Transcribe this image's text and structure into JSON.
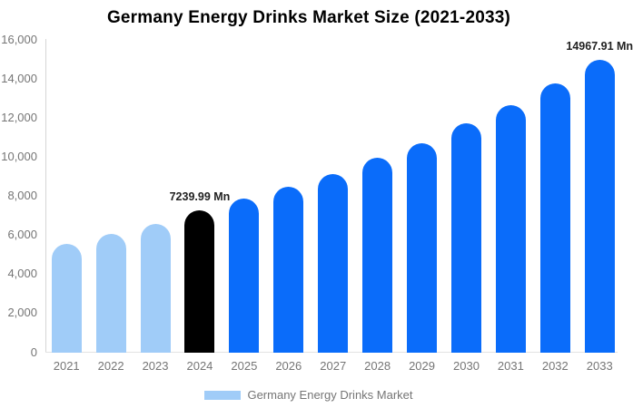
{
  "title": "Germany Energy Drinks Market Size (2021-2033)",
  "colors": {
    "past_bar": "#A0CCF8",
    "current_bar": "#000000",
    "forecast_bar": "#0A6CFA",
    "axis_text": "#757575",
    "axis_line": "#D6D6D6",
    "data_label_text": "#222222",
    "background": "#FFFFFF"
  },
  "y_axis": {
    "ticks": [
      "16,000",
      "14,000",
      "12,000",
      "10,000",
      "8,000",
      "6,000",
      "4,000",
      "2,000",
      "0"
    ],
    "min": 0,
    "max": 16000
  },
  "legend": {
    "label": "Germany Energy Drinks Market",
    "swatch_color": "#A0CCF8"
  },
  "chart_data": {
    "type": "bar",
    "title": "Germany Energy Drinks Market Size (2021-2033)",
    "categories": [
      "2021",
      "2022",
      "2023",
      "2024",
      "2025",
      "2026",
      "2027",
      "2028",
      "2029",
      "2030",
      "2031",
      "2032",
      "2033"
    ],
    "values": [
      5560,
      6060,
      6580,
      7239.99,
      7850,
      8450,
      9110,
      9960,
      10680,
      11690,
      12660,
      13740,
      14967.91
    ],
    "bar_roles": [
      "past_bar",
      "past_bar",
      "past_bar",
      "current_bar",
      "forecast_bar",
      "forecast_bar",
      "forecast_bar",
      "forecast_bar",
      "forecast_bar",
      "forecast_bar",
      "forecast_bar",
      "forecast_bar",
      "forecast_bar"
    ],
    "annotations": [
      {
        "category": "2024",
        "text": "7239.99 Mn"
      },
      {
        "category": "2033",
        "text": "14967.91 Mn"
      }
    ],
    "unit": "Mn",
    "xlabel": "",
    "ylabel": "",
    "ylim": [
      0,
      16000
    ],
    "grid": false,
    "legend_entries": [
      "Germany Energy Drinks Market"
    ],
    "legend_position": "bottom"
  }
}
